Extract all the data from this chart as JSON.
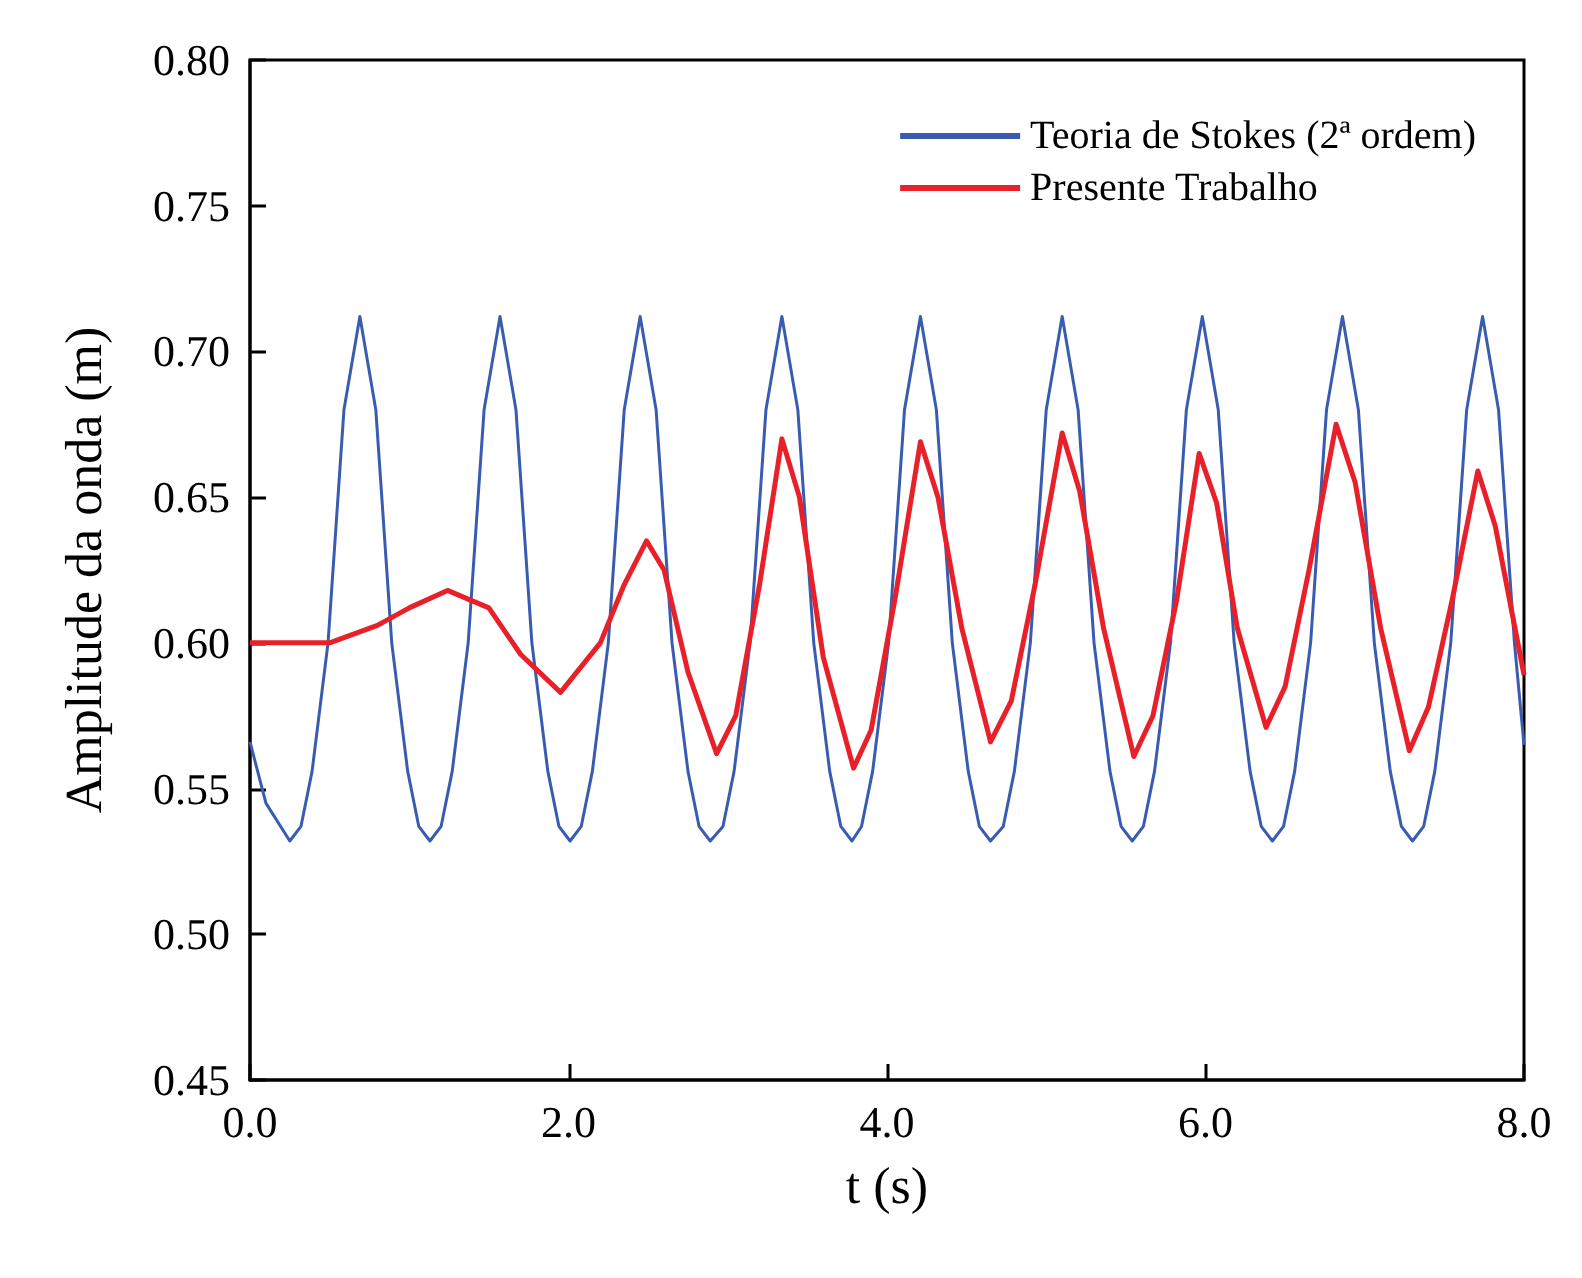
{
  "chart_data": {
    "type": "line",
    "xlabel": "t (s)",
    "ylabel": "Amplitude da onda (m)",
    "xlim": [
      0,
      8
    ],
    "ylim": [
      0.45,
      0.8
    ],
    "xticks": [
      {
        "value": 0,
        "label": "0.0"
      },
      {
        "value": 2,
        "label": "2.0"
      },
      {
        "value": 4,
        "label": "4.0"
      },
      {
        "value": 6,
        "label": "6.0"
      },
      {
        "value": 8,
        "label": "8.0"
      }
    ],
    "yticks": [
      0.45,
      {
        "value": 0.5,
        "label": "0.50"
      },
      0.55,
      {
        "value": 0.6,
        "label": "0.60"
      },
      0.65,
      {
        "value": 0.7,
        "label": "0.70"
      },
      0.75,
      {
        "value": 0.8,
        "label": "0.80"
      }
    ],
    "grid": false,
    "legend": "top right",
    "marker": "none",
    "line_style": "solid",
    "series": [
      {
        "name": "Teoria de Stokes (2ª ordem)",
        "color": "#3a5cb0",
        "x": [
          0,
          0.1,
          0.25,
          0.32,
          0.39,
          0.49,
          0.59,
          0.69,
          0.79,
          0.89,
          0.99,
          1.06,
          1.13,
          1.2,
          1.27,
          1.37,
          1.47,
          1.57,
          1.67,
          1.77,
          1.87,
          1.94,
          2.01,
          2.08,
          2.15,
          2.25,
          2.35,
          2.45,
          2.55,
          2.65,
          2.75,
          2.82,
          2.89,
          2.97,
          3.04,
          3.14,
          3.24,
          3.34,
          3.44,
          3.54,
          3.64,
          3.71,
          3.78,
          3.84,
          3.91,
          4.01,
          4.11,
          4.21,
          4.31,
          4.41,
          4.51,
          4.58,
          4.65,
          4.73,
          4.8,
          4.9,
          5.0,
          5.1,
          5.2,
          5.3,
          5.4,
          5.47,
          5.54,
          5.61,
          5.68,
          5.78,
          5.88,
          5.98,
          6.08,
          6.18,
          6.28,
          6.35,
          6.42,
          6.49,
          6.56,
          6.66,
          6.76,
          6.86,
          6.96,
          7.06,
          7.16,
          7.23,
          7.3,
          7.37,
          7.44,
          7.54,
          7.64,
          7.74,
          7.84,
          7.94,
          8.0
        ],
        "values": [
          0.566,
          0.545,
          0.532,
          0.537,
          0.556,
          0.6,
          0.68,
          0.712,
          0.68,
          0.6,
          0.556,
          0.537,
          0.532,
          0.537,
          0.556,
          0.6,
          0.68,
          0.712,
          0.68,
          0.6,
          0.556,
          0.537,
          0.532,
          0.537,
          0.556,
          0.6,
          0.68,
          0.712,
          0.68,
          0.6,
          0.556,
          0.537,
          0.532,
          0.537,
          0.556,
          0.6,
          0.68,
          0.712,
          0.68,
          0.6,
          0.556,
          0.537,
          0.532,
          0.537,
          0.556,
          0.6,
          0.68,
          0.712,
          0.68,
          0.6,
          0.556,
          0.537,
          0.532,
          0.537,
          0.556,
          0.6,
          0.68,
          0.712,
          0.68,
          0.6,
          0.556,
          0.537,
          0.532,
          0.537,
          0.556,
          0.6,
          0.68,
          0.712,
          0.68,
          0.6,
          0.556,
          0.537,
          0.532,
          0.537,
          0.556,
          0.6,
          0.68,
          0.712,
          0.68,
          0.6,
          0.556,
          0.537,
          0.532,
          0.537,
          0.556,
          0.6,
          0.68,
          0.712,
          0.68,
          0.6,
          0.565
        ]
      },
      {
        "name": "Presente Trabalho",
        "color": "#e8202a",
        "x": [
          0,
          0.5,
          0.8,
          1.0,
          1.24,
          1.5,
          1.7,
          1.95,
          2.2,
          2.35,
          2.49,
          2.6,
          2.75,
          2.93,
          3.05,
          3.2,
          3.34,
          3.45,
          3.6,
          3.79,
          3.9,
          4.05,
          4.21,
          4.32,
          4.47,
          4.65,
          4.78,
          4.93,
          5.1,
          5.21,
          5.36,
          5.55,
          5.67,
          5.82,
          5.96,
          6.07,
          6.2,
          6.38,
          6.5,
          6.65,
          6.82,
          6.94,
          7.1,
          7.28,
          7.4,
          7.55,
          7.71,
          7.82,
          8.0
        ],
        "values": [
          0.6,
          0.6,
          0.606,
          0.612,
          0.618,
          0.612,
          0.596,
          0.583,
          0.6,
          0.62,
          0.635,
          0.625,
          0.59,
          0.562,
          0.575,
          0.62,
          0.67,
          0.65,
          0.595,
          0.557,
          0.57,
          0.615,
          0.669,
          0.65,
          0.605,
          0.566,
          0.58,
          0.62,
          0.672,
          0.652,
          0.605,
          0.561,
          0.575,
          0.615,
          0.665,
          0.648,
          0.605,
          0.571,
          0.585,
          0.625,
          0.675,
          0.655,
          0.605,
          0.563,
          0.578,
          0.615,
          0.659,
          0.64,
          0.589
        ]
      }
    ]
  }
}
